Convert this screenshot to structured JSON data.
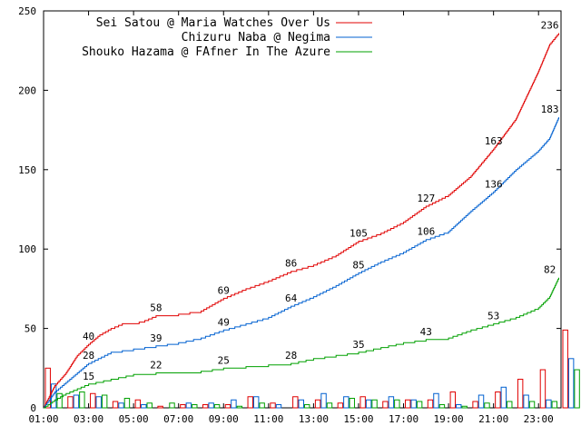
{
  "chart_data": {
    "type": "line",
    "title": "",
    "xlabel": "",
    "ylabel": "",
    "x_ticks": [
      "01:00",
      "03:00",
      "05:00",
      "07:00",
      "09:00",
      "11:00",
      "13:00",
      "15:00",
      "17:00",
      "19:00",
      "21:00",
      "23:00"
    ],
    "y_ticks": [
      "0",
      "50",
      "100",
      "150",
      "200",
      "250"
    ],
    "xlim_hours": [
      1.0,
      24.0
    ],
    "ylim": [
      0,
      250
    ],
    "legend_position": "top-left",
    "series": [
      {
        "name": "Sei Satou @ Maria Watches Over Us",
        "color": "#e00000",
        "cumulative": [
          [
            1.0,
            0
          ],
          [
            1.5,
            14
          ],
          [
            2.0,
            22
          ],
          [
            2.5,
            33
          ],
          [
            3.0,
            40
          ],
          [
            3.5,
            46
          ],
          [
            4.0,
            50
          ],
          [
            4.5,
            53
          ],
          [
            5.0,
            53
          ],
          [
            5.5,
            55
          ],
          [
            6.0,
            58
          ],
          [
            7.0,
            59
          ],
          [
            8.0,
            61
          ],
          [
            9.0,
            69
          ],
          [
            10.0,
            75
          ],
          [
            11.0,
            80
          ],
          [
            12.0,
            86
          ],
          [
            13.0,
            90
          ],
          [
            14.0,
            96
          ],
          [
            15.0,
            105
          ],
          [
            16.0,
            110
          ],
          [
            17.0,
            117
          ],
          [
            18.0,
            127
          ],
          [
            19.0,
            134
          ],
          [
            20.0,
            146
          ],
          [
            21.0,
            163
          ],
          [
            22.0,
            182
          ],
          [
            23.0,
            212
          ],
          [
            23.5,
            229
          ],
          [
            23.9,
            236
          ]
        ],
        "labels": [
          [
            3.0,
            40
          ],
          [
            6.0,
            58
          ],
          [
            9.0,
            69
          ],
          [
            12.0,
            86
          ],
          [
            15.0,
            105
          ],
          [
            18.0,
            127
          ],
          [
            21.0,
            163
          ],
          [
            23.5,
            236
          ]
        ]
      },
      {
        "name": "Chizuru Naba @ Negima",
        "color": "#0060d0",
        "cumulative": [
          [
            1.0,
            0
          ],
          [
            1.5,
            10
          ],
          [
            2.0,
            16
          ],
          [
            2.5,
            22
          ],
          [
            3.0,
            28
          ],
          [
            4.0,
            35
          ],
          [
            5.0,
            37
          ],
          [
            6.0,
            39
          ],
          [
            7.0,
            41
          ],
          [
            8.0,
            44
          ],
          [
            9.0,
            49
          ],
          [
            10.0,
            53
          ],
          [
            11.0,
            57
          ],
          [
            12.0,
            64
          ],
          [
            13.0,
            70
          ],
          [
            14.0,
            77
          ],
          [
            15.0,
            85
          ],
          [
            16.0,
            92
          ],
          [
            17.0,
            98
          ],
          [
            18.0,
            106
          ],
          [
            19.0,
            111
          ],
          [
            20.0,
            124
          ],
          [
            21.0,
            136
          ],
          [
            22.0,
            150
          ],
          [
            23.0,
            162
          ],
          [
            23.5,
            170
          ],
          [
            23.9,
            183
          ]
        ],
        "labels": [
          [
            3.0,
            28
          ],
          [
            6.0,
            39
          ],
          [
            9.0,
            49
          ],
          [
            12.0,
            64
          ],
          [
            15.0,
            85
          ],
          [
            18.0,
            106
          ],
          [
            21.0,
            136
          ],
          [
            23.5,
            183
          ]
        ]
      },
      {
        "name": "Shouko Hazama @ FAfner In The Azure",
        "color": "#00a000",
        "cumulative": [
          [
            1.0,
            0
          ],
          [
            1.5,
            5
          ],
          [
            2.0,
            9
          ],
          [
            2.5,
            12
          ],
          [
            3.0,
            15
          ],
          [
            4.0,
            18
          ],
          [
            5.0,
            21
          ],
          [
            6.0,
            22
          ],
          [
            7.0,
            22
          ],
          [
            8.0,
            23
          ],
          [
            9.0,
            25
          ],
          [
            10.0,
            26
          ],
          [
            11.0,
            27
          ],
          [
            12.0,
            28
          ],
          [
            13.0,
            31
          ],
          [
            14.0,
            33
          ],
          [
            15.0,
            35
          ],
          [
            16.0,
            38
          ],
          [
            17.0,
            41
          ],
          [
            18.0,
            43
          ],
          [
            19.0,
            44
          ],
          [
            20.0,
            49
          ],
          [
            21.0,
            53
          ],
          [
            22.0,
            57
          ],
          [
            23.0,
            63
          ],
          [
            23.5,
            70
          ],
          [
            23.9,
            82
          ]
        ],
        "labels": [
          [
            3.0,
            15
          ],
          [
            6.0,
            22
          ],
          [
            9.0,
            25
          ],
          [
            12.0,
            28
          ],
          [
            15.0,
            35
          ],
          [
            18.0,
            43
          ],
          [
            21.0,
            53
          ],
          [
            23.5,
            82
          ]
        ]
      }
    ],
    "hourly_bars": [
      {
        "series": 0,
        "values": [
          25,
          7,
          9,
          4,
          5,
          1,
          2,
          2,
          2,
          7,
          3,
          7,
          5,
          3,
          7,
          4,
          5,
          5,
          10,
          4,
          10,
          18,
          24,
          49
        ]
      },
      {
        "series": 1,
        "values": [
          15,
          8,
          7,
          3,
          2,
          0,
          3,
          3,
          5,
          7,
          2,
          5,
          9,
          7,
          5,
          7,
          5,
          9,
          2,
          8,
          13,
          8,
          5,
          31
        ]
      },
      {
        "series": 2,
        "values": [
          9,
          10,
          8,
          6,
          3,
          3,
          2,
          2,
          1,
          3,
          0,
          2,
          3,
          6,
          5,
          5,
          4,
          2,
          1,
          3,
          4,
          4,
          4,
          24
        ]
      }
    ]
  }
}
